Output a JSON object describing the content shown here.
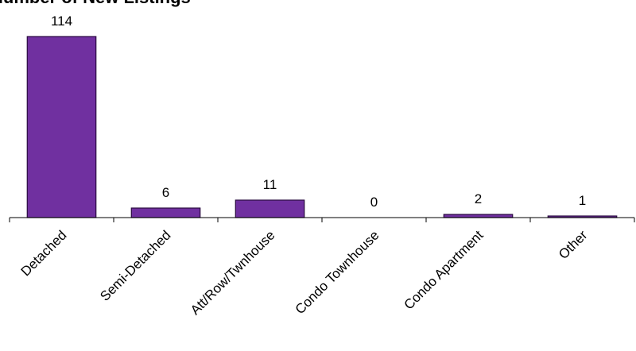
{
  "chart_data": {
    "type": "bar",
    "title": "Number of New Listings",
    "categories": [
      "Detached",
      "Semi-Detached",
      "Att/Row/Twnhouse",
      "Condo Townhouse",
      "Condo Apartment",
      "Other"
    ],
    "values": [
      114,
      6,
      11,
      0,
      2,
      1
    ],
    "color": "#7030a0"
  }
}
